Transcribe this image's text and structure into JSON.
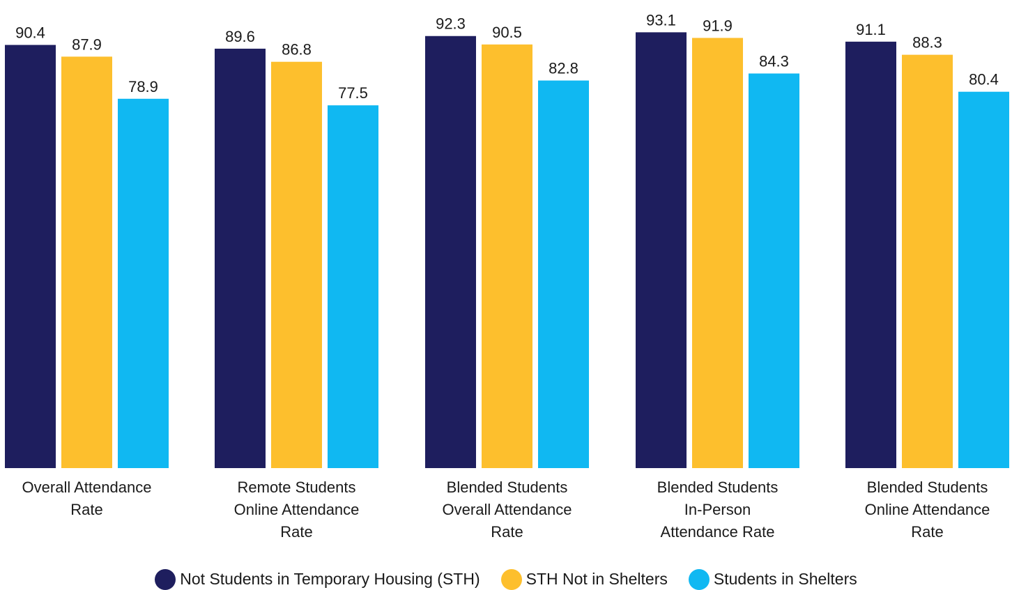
{
  "chart_data": {
    "type": "bar",
    "categories": [
      [
        "Overall Attendance",
        "Rate"
      ],
      [
        "Remote Students",
        "Online Attendance",
        "Rate"
      ],
      [
        "Blended Students",
        "Overall Attendance",
        "Rate"
      ],
      [
        "Blended Students",
        "In-Person",
        "Attendance Rate"
      ],
      [
        "Blended Students",
        "Online Attendance",
        "Rate"
      ]
    ],
    "series": [
      {
        "name": "Not Students in Temporary Housing (STH)",
        "color": "#1e1e5e",
        "values": [
          90.4,
          89.6,
          92.3,
          93.1,
          91.1
        ]
      },
      {
        "name": "STH Not in Shelters",
        "color": "#fdbf2d",
        "values": [
          87.9,
          86.8,
          90.5,
          91.9,
          88.3
        ]
      },
      {
        "name": "Students in Shelters",
        "color": "#10b8f2",
        "values": [
          78.9,
          77.5,
          82.8,
          84.3,
          80.4
        ]
      }
    ],
    "value_labels": [
      [
        "90.4",
        "89.6",
        "92.3",
        "93.1",
        "91.1"
      ],
      [
        "87.9",
        "86.8",
        "90.5",
        "91.9",
        "88.3"
      ],
      [
        "78.9",
        "77.5",
        "82.8",
        "84.3",
        "80.4"
      ]
    ],
    "ylim": [
      0,
      100
    ],
    "grid": false,
    "legend_position": "bottom-center"
  }
}
